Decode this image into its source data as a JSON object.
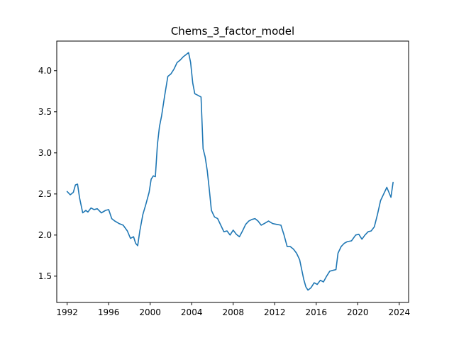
{
  "chart_data": {
    "type": "line",
    "title": "Chems_3_factor_model",
    "xlabel": "",
    "ylabel": "",
    "xlim": [
      1991.0,
      2024.9
    ],
    "ylim": [
      1.18,
      4.36
    ],
    "grid": false,
    "x_ticks": [
      1992,
      1996,
      2000,
      2004,
      2008,
      2012,
      2016,
      2020,
      2024
    ],
    "y_ticks": [
      1.5,
      2.0,
      2.5,
      3.0,
      3.5,
      4.0
    ],
    "x_tick_labels": [
      "1992",
      "1996",
      "2000",
      "2004",
      "2008",
      "2012",
      "2016",
      "2020",
      "2024"
    ],
    "y_tick_labels": [
      "1.5",
      "2.0",
      "2.5",
      "3.0",
      "3.5",
      "4.0"
    ],
    "series": [
      {
        "name": "",
        "color": "#1f77b4",
        "x": [
          1992.0,
          1992.3,
          1992.6,
          1992.8,
          1993.0,
          1993.2,
          1993.5,
          1993.8,
          1994.0,
          1994.3,
          1994.6,
          1994.9,
          1995.3,
          1995.7,
          1996.0,
          1996.3,
          1996.6,
          1997.0,
          1997.4,
          1997.8,
          1998.1,
          1998.4,
          1998.6,
          1998.8,
          1999.0,
          1999.3,
          1999.6,
          1999.9,
          2000.1,
          2000.3,
          2000.5,
          2000.7,
          2000.9,
          2001.1,
          2001.4,
          2001.7,
          2002.0,
          2002.3,
          2002.6,
          2002.9,
          2003.2,
          2003.5,
          2003.7,
          2003.9,
          2004.1,
          2004.3,
          2004.6,
          2004.9,
          2005.1,
          2005.3,
          2005.5,
          2005.7,
          2005.9,
          2006.2,
          2006.5,
          2006.8,
          2007.1,
          2007.4,
          2007.7,
          2008.0,
          2008.3,
          2008.6,
          2008.9,
          2009.2,
          2009.5,
          2009.8,
          2010.1,
          2010.4,
          2010.7,
          2011.0,
          2011.4,
          2011.8,
          2012.2,
          2012.6,
          2012.9,
          2013.2,
          2013.5,
          2013.8,
          2014.1,
          2014.4,
          2014.6,
          2014.8,
          2015.0,
          2015.2,
          2015.5,
          2015.8,
          2016.1,
          2016.4,
          2016.7,
          2017.0,
          2017.3,
          2017.6,
          2017.9,
          2018.1,
          2018.4,
          2018.7,
          2019.0,
          2019.4,
          2019.8,
          2020.1,
          2020.4,
          2020.7,
          2021.0,
          2021.3,
          2021.6,
          2021.9,
          2022.2,
          2022.5,
          2022.8,
          2023.0,
          2023.2,
          2023.4
        ],
        "y": [
          2.53,
          2.49,
          2.52,
          2.61,
          2.62,
          2.45,
          2.27,
          2.3,
          2.28,
          2.33,
          2.31,
          2.32,
          2.27,
          2.3,
          2.31,
          2.2,
          2.17,
          2.14,
          2.12,
          2.05,
          1.96,
          1.98,
          1.9,
          1.87,
          2.05,
          2.25,
          2.38,
          2.52,
          2.68,
          2.72,
          2.71,
          3.1,
          3.32,
          3.45,
          3.7,
          3.93,
          3.96,
          4.02,
          4.1,
          4.13,
          4.17,
          4.2,
          4.22,
          4.1,
          3.85,
          3.72,
          3.7,
          3.68,
          3.05,
          2.95,
          2.78,
          2.55,
          2.3,
          2.22,
          2.2,
          2.12,
          2.04,
          2.05,
          2.0,
          2.06,
          2.01,
          1.98,
          2.05,
          2.13,
          2.17,
          2.19,
          2.2,
          2.17,
          2.12,
          2.14,
          2.17,
          2.14,
          2.13,
          2.12,
          2.0,
          1.86,
          1.86,
          1.83,
          1.78,
          1.7,
          1.58,
          1.46,
          1.37,
          1.33,
          1.36,
          1.42,
          1.4,
          1.45,
          1.43,
          1.5,
          1.56,
          1.57,
          1.58,
          1.78,
          1.86,
          1.9,
          1.92,
          1.93,
          2.0,
          2.01,
          1.95,
          2.0,
          2.04,
          2.05,
          2.1,
          2.25,
          2.42,
          2.5,
          2.58,
          2.52,
          2.46,
          2.64
        ]
      }
    ]
  }
}
